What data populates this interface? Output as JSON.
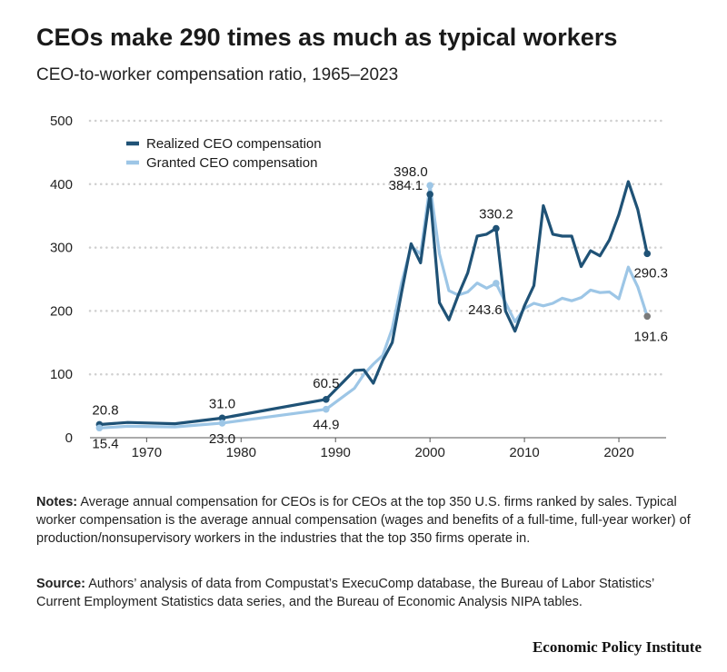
{
  "header": {
    "title": "CEOs make 290 times as much as typical workers",
    "subtitle": "CEO-to-worker compensation ratio, 1965–2023"
  },
  "chart_data": {
    "type": "line",
    "title": "CEOs make 290 times as much as typical workers",
    "subtitle": "CEO-to-worker compensation ratio, 1965–2023",
    "xlabel": "",
    "ylabel": "",
    "xlim": [
      1964,
      2025
    ],
    "ylim": [
      0,
      500
    ],
    "yticks": [
      0,
      100,
      200,
      300,
      400,
      500
    ],
    "xticks": [
      1970,
      1980,
      1990,
      2000,
      2010,
      2020
    ],
    "grid": true,
    "legend_position": "top-left",
    "series": [
      {
        "name": "Realized CEO compensation",
        "color": "#1f5276",
        "points": [
          [
            1965,
            20.8
          ],
          [
            1968,
            24
          ],
          [
            1973,
            22
          ],
          [
            1978,
            31.0
          ],
          [
            1989,
            60.5
          ],
          [
            1992,
            106
          ],
          [
            1993,
            107
          ],
          [
            1994,
            86
          ],
          [
            1995,
            122
          ],
          [
            1996,
            150
          ],
          [
            1997,
            230
          ],
          [
            1998,
            306
          ],
          [
            1999,
            276
          ],
          [
            2000,
            384.1
          ],
          [
            2001,
            213
          ],
          [
            2002,
            186
          ],
          [
            2003,
            225
          ],
          [
            2004,
            260
          ],
          [
            2005,
            318
          ],
          [
            2006,
            321
          ],
          [
            2007,
            330.2
          ],
          [
            2008,
            200
          ],
          [
            2009,
            168
          ],
          [
            2010,
            208
          ],
          [
            2011,
            240
          ],
          [
            2012,
            366
          ],
          [
            2013,
            321
          ],
          [
            2014,
            318
          ],
          [
            2015,
            318
          ],
          [
            2016,
            270
          ],
          [
            2017,
            295
          ],
          [
            2018,
            287
          ],
          [
            2019,
            312
          ],
          [
            2020,
            352
          ],
          [
            2021,
            404
          ],
          [
            2022,
            360
          ],
          [
            2023,
            290.3
          ]
        ]
      },
      {
        "name": "Granted CEO compensation",
        "color": "#9dc6e6",
        "points": [
          [
            1965,
            15.4
          ],
          [
            1968,
            18
          ],
          [
            1973,
            17
          ],
          [
            1978,
            23.0
          ],
          [
            1989,
            44.9
          ],
          [
            1992,
            78
          ],
          [
            1993,
            100
          ],
          [
            1994,
            116
          ],
          [
            1995,
            130
          ],
          [
            1996,
            172
          ],
          [
            1997,
            245
          ],
          [
            1998,
            302
          ],
          [
            1999,
            290
          ],
          [
            2000,
            398.0
          ],
          [
            2001,
            290
          ],
          [
            2002,
            232
          ],
          [
            2003,
            225
          ],
          [
            2004,
            230
          ],
          [
            2005,
            244
          ],
          [
            2006,
            236
          ],
          [
            2007,
            243.6
          ],
          [
            2008,
            213
          ],
          [
            2009,
            183
          ],
          [
            2010,
            204
          ],
          [
            2011,
            212
          ],
          [
            2012,
            208
          ],
          [
            2013,
            212
          ],
          [
            2014,
            220
          ],
          [
            2015,
            216
          ],
          [
            2016,
            221
          ],
          [
            2017,
            233
          ],
          [
            2018,
            229
          ],
          [
            2019,
            230
          ],
          [
            2020,
            219
          ],
          [
            2021,
            269
          ],
          [
            2022,
            238
          ],
          [
            2023,
            191.6
          ]
        ]
      }
    ],
    "data_labels": [
      {
        "text": "20.8",
        "series": 0,
        "x": 1965,
        "y": 20.8,
        "pos": "above-right"
      },
      {
        "text": "15.4",
        "series": 1,
        "x": 1965,
        "y": 15.4,
        "pos": "below-right"
      },
      {
        "text": "31.0",
        "series": 0,
        "x": 1978,
        "y": 31.0,
        "pos": "above"
      },
      {
        "text": "23.0",
        "series": 1,
        "x": 1978,
        "y": 23.0,
        "pos": "below"
      },
      {
        "text": "60.5",
        "series": 0,
        "x": 1989,
        "y": 60.5,
        "pos": "above"
      },
      {
        "text": "44.9",
        "series": 1,
        "x": 1989,
        "y": 44.9,
        "pos": "below"
      },
      {
        "text": "398.0",
        "series": 1,
        "x": 2000,
        "y": 398.0,
        "pos": "above-left"
      },
      {
        "text": "384.1",
        "series": 0,
        "x": 2000,
        "y": 384.1,
        "pos": "left"
      },
      {
        "text": "330.2",
        "series": 0,
        "x": 2007,
        "y": 330.2,
        "pos": "above"
      },
      {
        "text": "243.6",
        "series": 1,
        "x": 2007,
        "y": 243.6,
        "pos": "below"
      },
      {
        "text": "290.3",
        "series": 0,
        "x": 2023,
        "y": 290.3,
        "pos": "below"
      },
      {
        "text": "191.6",
        "series": 1,
        "x": 2023,
        "y": 191.6,
        "pos": "below"
      }
    ],
    "markers": [
      {
        "series": 0,
        "x": 1965,
        "y": 20.8
      },
      {
        "series": 1,
        "x": 1965,
        "y": 15.4
      },
      {
        "series": 0,
        "x": 1978,
        "y": 31.0
      },
      {
        "series": 1,
        "x": 1978,
        "y": 23.0
      },
      {
        "series": 0,
        "x": 1989,
        "y": 60.5
      },
      {
        "series": 1,
        "x": 1989,
        "y": 44.9
      },
      {
        "series": 0,
        "x": 2000,
        "y": 384.1
      },
      {
        "series": 1,
        "x": 2000,
        "y": 398.0
      },
      {
        "series": 0,
        "x": 2007,
        "y": 330.2
      },
      {
        "series": 1,
        "x": 2007,
        "y": 243.6
      },
      {
        "series": 0,
        "x": 2023,
        "y": 290.3
      },
      {
        "series": 1,
        "x": 2023,
        "y": 191.6
      }
    ]
  },
  "footer": {
    "notes_label": "Notes:",
    "notes_text": " Average annual compensation for CEOs is for CEOs at the top 350 U.S. firms ranked by sales. Typical worker compensation is the average annual compensation (wages and benefits of a full-time, full-year worker) of production/nonsupervisory workers in the industries that the top 350 firms operate in.",
    "source_label": "Source:",
    "source_text": " Authors’ analysis of data from Compustat’s ExecuComp database, the Bureau of Labor Statistics’ Current Employment Statistics data series, and the Bureau of Economic Analysis NIPA tables.",
    "credit": "Economic Policy Institute"
  },
  "colors": {
    "realized": "#1f5276",
    "granted": "#9dc6e6",
    "grid": "#cfcfcf",
    "axis": "#555555",
    "marker_end": "#7a7a7a"
  }
}
